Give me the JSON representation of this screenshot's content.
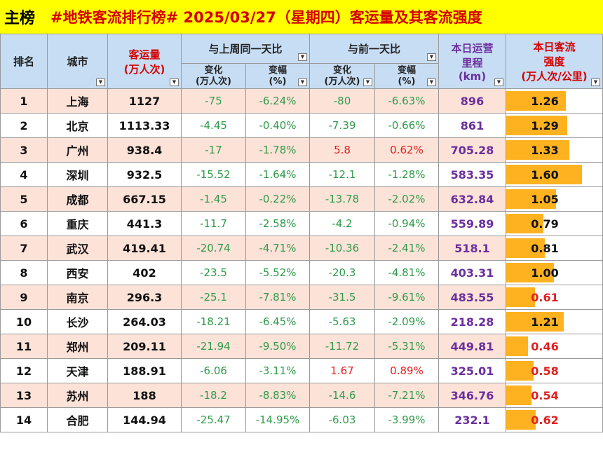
{
  "title": {
    "main": "主榜",
    "sub": "#地铁客流排行榜# 2025/03/27（星期四）客运量及其客流强度"
  },
  "headers": {
    "rank": "排名",
    "city": "城市",
    "volume_line1": "客运量",
    "volume_line2": "(万人次)",
    "week_group": "与上周同一天比",
    "day_group": "与前一天比",
    "mileage_line1": "本日运营",
    "mileage_line2": "里程",
    "mileage_line3": "(km)",
    "intensity_line1": "本日客流",
    "intensity_line2": "强度",
    "intensity_line3": "(万人次/公里)",
    "change_line1": "变化",
    "change_line2": "(万人次)",
    "pct_line1": "变幅",
    "pct_line2": "(%)"
  },
  "dropdown_icon": "filter-dropdown-icon",
  "rows": [
    {
      "rank": "1",
      "city": "上海",
      "volume": "1127",
      "w_change": "-75",
      "w_pct": "-6.24%",
      "d_change": "-80",
      "d_pct": "-6.63%",
      "mileage": "896",
      "intensity": "1.26",
      "intensity_value": 1.26
    },
    {
      "rank": "2",
      "city": "北京",
      "volume": "1113.33",
      "w_change": "-4.45",
      "w_pct": "-0.40%",
      "d_change": "-7.39",
      "d_pct": "-0.66%",
      "mileage": "861",
      "intensity": "1.29",
      "intensity_value": 1.29
    },
    {
      "rank": "3",
      "city": "广州",
      "volume": "938.4",
      "w_change": "-17",
      "w_pct": "-1.78%",
      "d_change": "5.8",
      "d_pct": "0.62%",
      "mileage": "705.28",
      "intensity": "1.33",
      "intensity_value": 1.33
    },
    {
      "rank": "4",
      "city": "深圳",
      "volume": "932.5",
      "w_change": "-15.52",
      "w_pct": "-1.64%",
      "d_change": "-12.1",
      "d_pct": "-1.28%",
      "mileage": "583.35",
      "intensity": "1.60",
      "intensity_value": 1.6
    },
    {
      "rank": "5",
      "city": "成都",
      "volume": "667.15",
      "w_change": "-1.45",
      "w_pct": "-0.22%",
      "d_change": "-13.78",
      "d_pct": "-2.02%",
      "mileage": "632.84",
      "intensity": "1.05",
      "intensity_value": 1.05
    },
    {
      "rank": "6",
      "city": "重庆",
      "volume": "441.3",
      "w_change": "-11.7",
      "w_pct": "-2.58%",
      "d_change": "-4.2",
      "d_pct": "-0.94%",
      "mileage": "559.89",
      "intensity": "0.79",
      "intensity_value": 0.79
    },
    {
      "rank": "7",
      "city": "武汉",
      "volume": "419.41",
      "w_change": "-20.74",
      "w_pct": "-4.71%",
      "d_change": "-10.36",
      "d_pct": "-2.41%",
      "mileage": "518.1",
      "intensity": "0.81",
      "intensity_value": 0.81
    },
    {
      "rank": "8",
      "city": "西安",
      "volume": "402",
      "w_change": "-23.5",
      "w_pct": "-5.52%",
      "d_change": "-20.3",
      "d_pct": "-4.81%",
      "mileage": "403.31",
      "intensity": "1.00",
      "intensity_value": 1.0
    },
    {
      "rank": "9",
      "city": "南京",
      "volume": "296.3",
      "w_change": "-25.1",
      "w_pct": "-7.81%",
      "d_change": "-31.5",
      "d_pct": "-9.61%",
      "mileage": "483.55",
      "intensity": "0.61",
      "intensity_value": 0.61
    },
    {
      "rank": "10",
      "city": "长沙",
      "volume": "264.03",
      "w_change": "-18.21",
      "w_pct": "-6.45%",
      "d_change": "-5.63",
      "d_pct": "-2.09%",
      "mileage": "218.28",
      "intensity": "1.21",
      "intensity_value": 1.21
    },
    {
      "rank": "11",
      "city": "郑州",
      "volume": "209.11",
      "w_change": "-21.94",
      "w_pct": "-9.50%",
      "d_change": "-11.72",
      "d_pct": "-5.31%",
      "mileage": "449.81",
      "intensity": "0.46",
      "intensity_value": 0.46
    },
    {
      "rank": "12",
      "city": "天津",
      "volume": "188.91",
      "w_change": "-6.06",
      "w_pct": "-3.11%",
      "d_change": "1.67",
      "d_pct": "0.89%",
      "mileage": "325.01",
      "intensity": "0.58",
      "intensity_value": 0.58
    },
    {
      "rank": "13",
      "city": "苏州",
      "volume": "188",
      "w_change": "-18.2",
      "w_pct": "-8.83%",
      "d_change": "-14.6",
      "d_pct": "-7.21%",
      "mileage": "346.76",
      "intensity": "0.54",
      "intensity_value": 0.54
    },
    {
      "rank": "14",
      "city": "合肥",
      "volume": "144.94",
      "w_change": "-25.47",
      "w_pct": "-14.95%",
      "d_change": "-6.03",
      "d_pct": "-3.99%",
      "mileage": "232.1",
      "intensity": "0.62",
      "intensity_value": 0.62
    }
  ],
  "colors": {
    "title_bg": "#ffff00",
    "title_text": "#d40000",
    "header_bg": "#c7ddf3",
    "row_alt_bg": "#fde2d8",
    "negative_text": "#2e9b4a",
    "positive_text": "#e02020",
    "mileage_text": "#6b2e9e",
    "intensity_bar": "#ffb21f",
    "low_intensity_text": "#e02020"
  },
  "intensity_scale_max": 1.6
}
